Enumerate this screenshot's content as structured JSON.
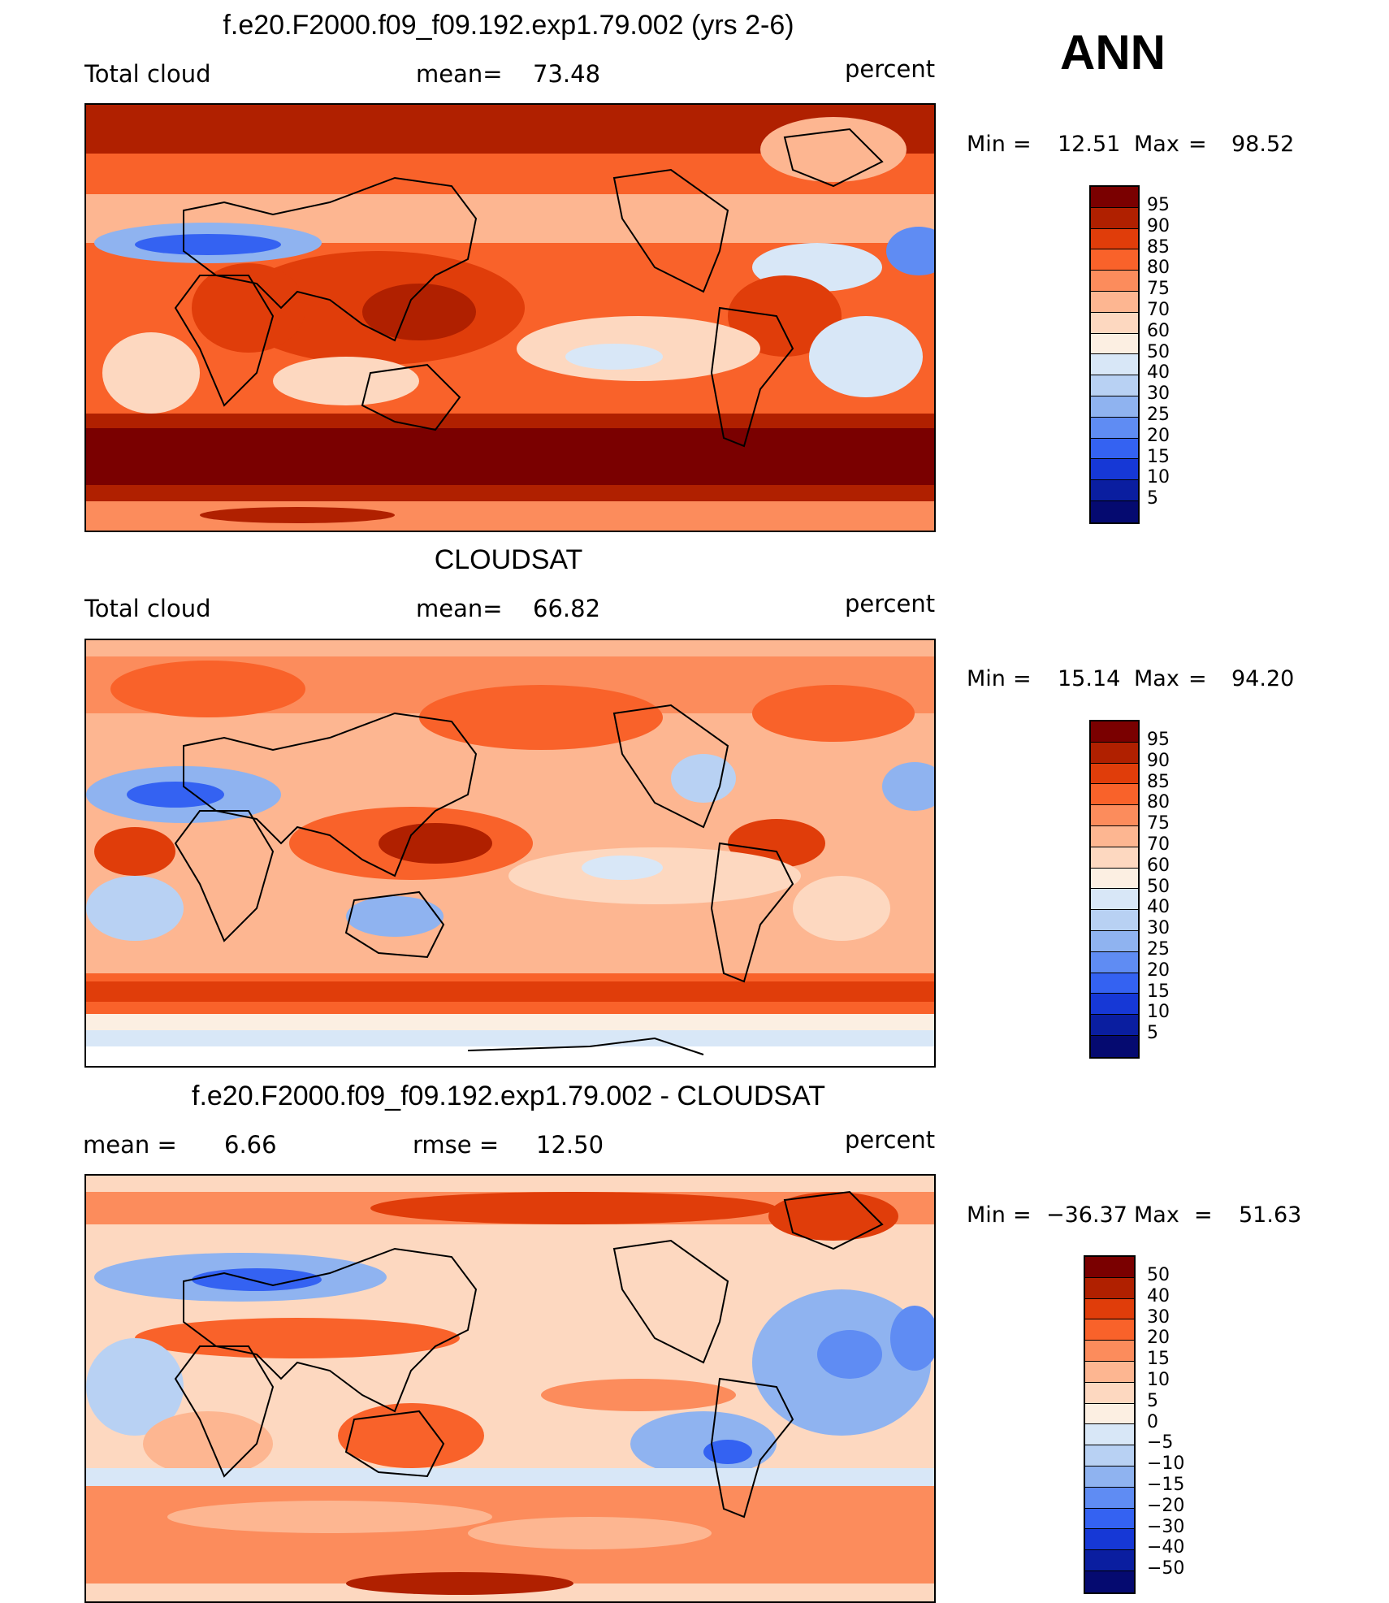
{
  "season": "ANN",
  "panels": [
    {
      "title": "f.e20.F2000.f09_f09.192.exp1.79.002 (yrs 2-6)",
      "left_label": "Total cloud",
      "center_label": "mean=",
      "center_value": "73.48",
      "right_label": "percent",
      "min_text": "Min",
      "min_value": "12.51",
      "max_text": "Max",
      "max_value": "98.52",
      "colorbar_labels": [
        "95",
        "90",
        "85",
        "80",
        "75",
        "70",
        "60",
        "50",
        "40",
        "30",
        "25",
        "20",
        "15",
        "10",
        "5"
      ],
      "colorbar_colors": [
        "#7a0000",
        "#b02000",
        "#e03d0a",
        "#f9622a",
        "#fc8c5c",
        "#fdb691",
        "#fdd8c0",
        "#fcefe2",
        "#d8e7f7",
        "#b8d1f3",
        "#8fb3f0",
        "#5f8cf3",
        "#3462f2",
        "#1638d6",
        "#0a1ea0",
        "#050a70"
      ]
    },
    {
      "title": "CLOUDSAT",
      "left_label": "Total cloud",
      "center_label": "mean=",
      "center_value": "66.82",
      "right_label": "percent",
      "min_text": "Min",
      "min_value": "15.14",
      "max_text": "Max",
      "max_value": "94.20",
      "colorbar_labels": [
        "95",
        "90",
        "85",
        "80",
        "75",
        "70",
        "60",
        "50",
        "40",
        "30",
        "25",
        "20",
        "15",
        "10",
        "5"
      ],
      "colorbar_colors": [
        "#7a0000",
        "#b02000",
        "#e03d0a",
        "#f9622a",
        "#fc8c5c",
        "#fdb691",
        "#fdd8c0",
        "#fcefe2",
        "#d8e7f7",
        "#b8d1f3",
        "#8fb3f0",
        "#5f8cf3",
        "#3462f2",
        "#1638d6",
        "#0a1ea0",
        "#050a70"
      ]
    },
    {
      "title": "f.e20.F2000.f09_f09.192.exp1.79.002 - CLOUDSAT",
      "left_label": "mean =",
      "left_value": "6.66",
      "center_label": "rmse =",
      "center_value": "12.50",
      "right_label": "percent",
      "min_text": "Min",
      "min_value": "−36.37",
      "max_text": "Max",
      "max_value": "51.63",
      "colorbar_labels": [
        "50",
        "40",
        "30",
        "20",
        "15",
        "10",
        "5",
        "0",
        "−5",
        "−10",
        "−15",
        "−20",
        "−30",
        "−40",
        "−50"
      ],
      "colorbar_colors": [
        "#7a0000",
        "#b02000",
        "#e03d0a",
        "#f9622a",
        "#fc8c5c",
        "#fdb691",
        "#fdd8c0",
        "#fcefe2",
        "#d8e7f7",
        "#b8d1f3",
        "#8fb3f0",
        "#5f8cf3",
        "#3462f2",
        "#1638d6",
        "#0a1ea0",
        "#050a70"
      ]
    }
  ]
}
